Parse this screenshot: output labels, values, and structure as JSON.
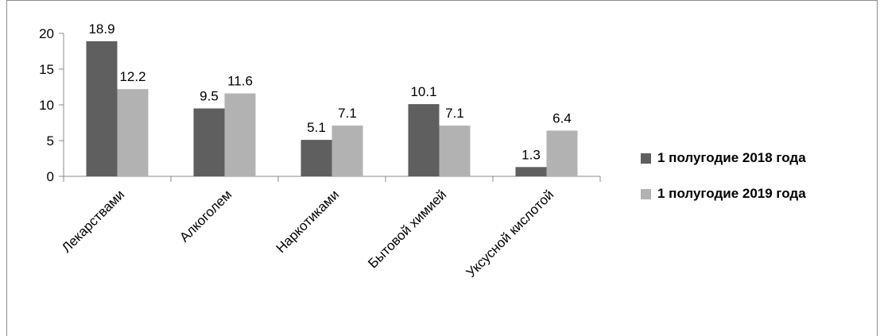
{
  "chart_data": {
    "type": "bar",
    "categories": [
      "Лекарствами",
      "Алкоголем",
      "Наркотиками",
      "Бытовой химией",
      "Уксусной кислотой"
    ],
    "series": [
      {
        "name": "1 полугодие 2018 года",
        "values": [
          18.9,
          9.5,
          5.1,
          10.1,
          1.3
        ],
        "color": "#5f5f5f"
      },
      {
        "name": "1 полугодие 2019 года",
        "values": [
          12.2,
          11.6,
          7.1,
          7.1,
          6.4
        ],
        "color": "#b2b2b2"
      }
    ],
    "data_labels": [
      [
        "18.9",
        "9.5",
        "5.1",
        "10.1",
        "1.3"
      ],
      [
        "12.2",
        "11.6",
        "7.1",
        "7.1",
        "6.4"
      ]
    ],
    "y_ticks": [
      "0",
      "5",
      "10",
      "15",
      "20"
    ],
    "ylim": [
      0,
      20
    ],
    "legend_position": "right",
    "grid": false
  }
}
